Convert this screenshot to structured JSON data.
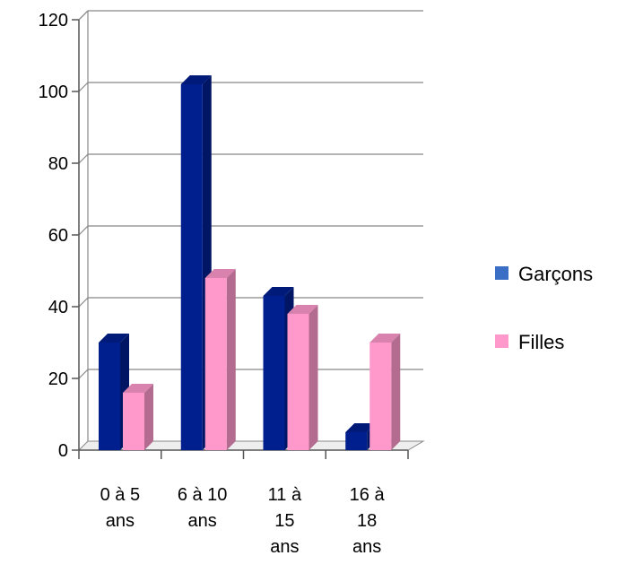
{
  "chart_data": {
    "type": "bar",
    "categories": [
      [
        "0 à 5",
        "ans"
      ],
      [
        "6 à 10",
        "ans"
      ],
      [
        "11 à",
        "15",
        "ans"
      ],
      [
        "16 à",
        "18",
        "ans"
      ]
    ],
    "series": [
      {
        "name": "Garçons",
        "values": [
          30,
          102,
          43,
          5
        ],
        "color": "#001f8f",
        "legend_color": "#3b6fc6"
      },
      {
        "name": "Filles",
        "values": [
          16,
          48,
          38,
          30
        ],
        "color": "#ff99cc",
        "legend_color": "#ff99cc"
      }
    ],
    "y_ticks": [
      "0",
      "20",
      "40",
      "60",
      "80",
      "100",
      "120"
    ],
    "ylim": [
      0,
      120
    ],
    "grid": true,
    "legend": "right",
    "title": "",
    "xlabel": "",
    "ylabel": ""
  }
}
